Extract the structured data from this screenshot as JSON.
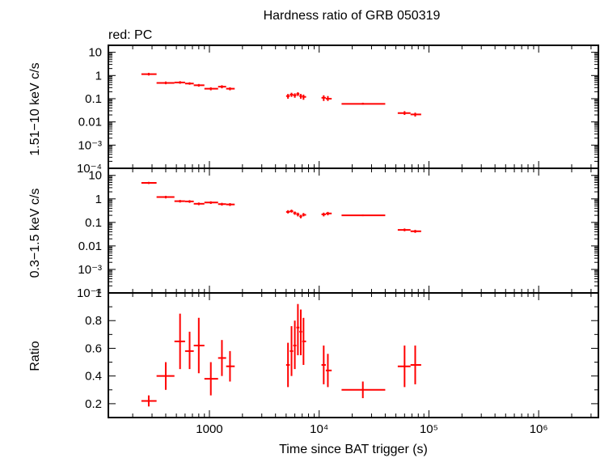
{
  "title": "Hardness ratio of GRB 050319",
  "subtitle": "red: PC",
  "xlabel": "Time since BAT trigger (s)",
  "colors": {
    "data": "#ff0000",
    "axes": "#000000",
    "background": "#ffffff"
  },
  "chart_data": [
    {
      "type": "scatter",
      "panel": "hard",
      "ylabel": "1.51−10 keV c/s",
      "xscale": "log",
      "yscale": "log",
      "xlim": [
        120,
        3500000
      ],
      "ylim": [
        0.0001,
        20
      ],
      "grid": false,
      "ytick_labels": [
        "10",
        "1",
        "0.1",
        "0.01",
        "10⁻³",
        "10⁻⁴"
      ],
      "points": [
        {
          "x": 280,
          "y": 1.15,
          "xerr": [
            240,
            330
          ],
          "yerr": [
            1.0,
            1.3
          ]
        },
        {
          "x": 400,
          "y": 0.48,
          "xerr": [
            330,
            480
          ],
          "yerr": [
            0.42,
            0.55
          ]
        },
        {
          "x": 540,
          "y": 0.5,
          "xerr": [
            480,
            600
          ],
          "yerr": [
            0.44,
            0.57
          ]
        },
        {
          "x": 660,
          "y": 0.45,
          "xerr": [
            600,
            720
          ],
          "yerr": [
            0.4,
            0.51
          ]
        },
        {
          "x": 800,
          "y": 0.38,
          "xerr": [
            720,
            900
          ],
          "yerr": [
            0.33,
            0.43
          ]
        },
        {
          "x": 1030,
          "y": 0.27,
          "xerr": [
            900,
            1200
          ],
          "yerr": [
            0.23,
            0.31
          ]
        },
        {
          "x": 1300,
          "y": 0.33,
          "xerr": [
            1200,
            1420
          ],
          "yerr": [
            0.28,
            0.38
          ]
        },
        {
          "x": 1540,
          "y": 0.27,
          "xerr": [
            1420,
            1700
          ],
          "yerr": [
            0.23,
            0.31
          ]
        },
        {
          "x": 5200,
          "y": 0.13,
          "xerr": [
            5000,
            5400
          ],
          "yerr": [
            0.1,
            0.16
          ]
        },
        {
          "x": 5600,
          "y": 0.15,
          "xerr": [
            5400,
            5800
          ],
          "yerr": [
            0.12,
            0.18
          ]
        },
        {
          "x": 6000,
          "y": 0.14,
          "xerr": [
            5800,
            6200
          ],
          "yerr": [
            0.11,
            0.17
          ]
        },
        {
          "x": 6400,
          "y": 0.16,
          "xerr": [
            6200,
            6600
          ],
          "yerr": [
            0.13,
            0.19
          ]
        },
        {
          "x": 6800,
          "y": 0.13,
          "xerr": [
            6600,
            7000
          ],
          "yerr": [
            0.1,
            0.16
          ]
        },
        {
          "x": 7200,
          "y": 0.12,
          "xerr": [
            7000,
            7600
          ],
          "yerr": [
            0.09,
            0.15
          ]
        },
        {
          "x": 11000,
          "y": 0.11,
          "xerr": [
            10500,
            11500
          ],
          "yerr": [
            0.08,
            0.14
          ]
        },
        {
          "x": 12000,
          "y": 0.1,
          "xerr": [
            11500,
            13000
          ],
          "yerr": [
            0.08,
            0.13
          ]
        },
        {
          "x": 25000,
          "y": 0.06,
          "xerr": [
            16000,
            40000
          ],
          "yerr": [
            0.055,
            0.067
          ]
        },
        {
          "x": 60000,
          "y": 0.024,
          "xerr": [
            52000,
            68000
          ],
          "yerr": [
            0.02,
            0.029
          ]
        },
        {
          "x": 75000,
          "y": 0.021,
          "xerr": [
            68000,
            85000
          ],
          "yerr": [
            0.017,
            0.025
          ]
        }
      ]
    },
    {
      "type": "scatter",
      "panel": "soft",
      "ylabel": "0.3−1.5 keV c/s",
      "xscale": "log",
      "yscale": "log",
      "xlim": [
        120,
        3500000
      ],
      "ylim": [
        0.0001,
        20
      ],
      "grid": false,
      "ytick_labels": [
        "10",
        "1",
        "0.1",
        "0.01",
        "10⁻³",
        "10⁻⁴"
      ],
      "points": [
        {
          "x": 280,
          "y": 4.8,
          "xerr": [
            240,
            330
          ],
          "yerr": [
            4.3,
            5.3
          ]
        },
        {
          "x": 400,
          "y": 1.2,
          "xerr": [
            330,
            480
          ],
          "yerr": [
            1.05,
            1.35
          ]
        },
        {
          "x": 540,
          "y": 0.8,
          "xerr": [
            480,
            600
          ],
          "yerr": [
            0.7,
            0.9
          ]
        },
        {
          "x": 660,
          "y": 0.78,
          "xerr": [
            600,
            720
          ],
          "yerr": [
            0.68,
            0.88
          ]
        },
        {
          "x": 800,
          "y": 0.62,
          "xerr": [
            720,
            900
          ],
          "yerr": [
            0.54,
            0.7
          ]
        },
        {
          "x": 1030,
          "y": 0.7,
          "xerr": [
            900,
            1200
          ],
          "yerr": [
            0.61,
            0.79
          ]
        },
        {
          "x": 1300,
          "y": 0.6,
          "xerr": [
            1200,
            1420
          ],
          "yerr": [
            0.52,
            0.68
          ]
        },
        {
          "x": 1540,
          "y": 0.58,
          "xerr": [
            1420,
            1700
          ],
          "yerr": [
            0.5,
            0.66
          ]
        },
        {
          "x": 5200,
          "y": 0.28,
          "xerr": [
            5000,
            5400
          ],
          "yerr": [
            0.24,
            0.33
          ]
        },
        {
          "x": 5600,
          "y": 0.3,
          "xerr": [
            5400,
            5800
          ],
          "yerr": [
            0.26,
            0.35
          ]
        },
        {
          "x": 6000,
          "y": 0.25,
          "xerr": [
            5800,
            6200
          ],
          "yerr": [
            0.21,
            0.29
          ]
        },
        {
          "x": 6400,
          "y": 0.22,
          "xerr": [
            6200,
            6600
          ],
          "yerr": [
            0.18,
            0.26
          ]
        },
        {
          "x": 6800,
          "y": 0.18,
          "xerr": [
            6600,
            7000
          ],
          "yerr": [
            0.15,
            0.21
          ]
        },
        {
          "x": 7200,
          "y": 0.21,
          "xerr": [
            7000,
            7600
          ],
          "yerr": [
            0.18,
            0.25
          ]
        },
        {
          "x": 11000,
          "y": 0.22,
          "xerr": [
            10500,
            11500
          ],
          "yerr": [
            0.18,
            0.26
          ]
        },
        {
          "x": 12000,
          "y": 0.24,
          "xerr": [
            11500,
            13000
          ],
          "yerr": [
            0.2,
            0.28
          ]
        },
        {
          "x": 25000,
          "y": 0.2,
          "xerr": [
            16000,
            40000
          ],
          "yerr": [
            0.185,
            0.215
          ]
        },
        {
          "x": 60000,
          "y": 0.048,
          "xerr": [
            52000,
            68000
          ],
          "yerr": [
            0.042,
            0.055
          ]
        },
        {
          "x": 75000,
          "y": 0.042,
          "xerr": [
            68000,
            85000
          ],
          "yerr": [
            0.036,
            0.048
          ]
        }
      ]
    },
    {
      "type": "scatter",
      "panel": "ratio",
      "ylabel": "Ratio",
      "xscale": "log",
      "yscale": "linear",
      "xlim": [
        120,
        3500000
      ],
      "ylim": [
        0.1,
        1.0
      ],
      "grid": false,
      "yticks": [
        0.2,
        0.4,
        0.6,
        0.8,
        1
      ],
      "ytick_labels": [
        "0.2",
        "0.4",
        "0.6",
        "0.8",
        "1"
      ],
      "xticks": [
        1000,
        10000,
        100000,
        1000000
      ],
      "xtick_labels": [
        "1000",
        "10⁴",
        "10⁵",
        "10⁶"
      ],
      "points": [
        {
          "x": 280,
          "y": 0.22,
          "xerr": [
            240,
            330
          ],
          "yerr": [
            0.18,
            0.26
          ]
        },
        {
          "x": 400,
          "y": 0.4,
          "xerr": [
            330,
            480
          ],
          "yerr": [
            0.3,
            0.5
          ]
        },
        {
          "x": 540,
          "y": 0.65,
          "xerr": [
            480,
            600
          ],
          "yerr": [
            0.45,
            0.85
          ]
        },
        {
          "x": 660,
          "y": 0.58,
          "xerr": [
            600,
            720
          ],
          "yerr": [
            0.45,
            0.72
          ]
        },
        {
          "x": 800,
          "y": 0.62,
          "xerr": [
            720,
            900
          ],
          "yerr": [
            0.42,
            0.82
          ]
        },
        {
          "x": 1030,
          "y": 0.38,
          "xerr": [
            900,
            1200
          ],
          "yerr": [
            0.26,
            0.5
          ]
        },
        {
          "x": 1300,
          "y": 0.53,
          "xerr": [
            1200,
            1420
          ],
          "yerr": [
            0.4,
            0.66
          ]
        },
        {
          "x": 1540,
          "y": 0.47,
          "xerr": [
            1420,
            1700
          ],
          "yerr": [
            0.36,
            0.58
          ]
        },
        {
          "x": 5200,
          "y": 0.48,
          "xerr": [
            5000,
            5400
          ],
          "yerr": [
            0.32,
            0.64
          ]
        },
        {
          "x": 5600,
          "y": 0.58,
          "xerr": [
            5400,
            5800
          ],
          "yerr": [
            0.4,
            0.76
          ]
        },
        {
          "x": 6000,
          "y": 0.62,
          "xerr": [
            5800,
            6200
          ],
          "yerr": [
            0.45,
            0.8
          ]
        },
        {
          "x": 6400,
          "y": 0.75,
          "xerr": [
            6200,
            6600
          ],
          "yerr": [
            0.55,
            0.92
          ]
        },
        {
          "x": 6800,
          "y": 0.72,
          "xerr": [
            6600,
            7000
          ],
          "yerr": [
            0.55,
            0.88
          ]
        },
        {
          "x": 7200,
          "y": 0.65,
          "xerr": [
            7000,
            7600
          ],
          "yerr": [
            0.48,
            0.82
          ]
        },
        {
          "x": 11000,
          "y": 0.48,
          "xerr": [
            10500,
            11500
          ],
          "yerr": [
            0.34,
            0.62
          ]
        },
        {
          "x": 12000,
          "y": 0.44,
          "xerr": [
            11500,
            13000
          ],
          "yerr": [
            0.32,
            0.56
          ]
        },
        {
          "x": 25000,
          "y": 0.3,
          "xerr": [
            16000,
            40000
          ],
          "yerr": [
            0.24,
            0.36
          ]
        },
        {
          "x": 60000,
          "y": 0.47,
          "xerr": [
            52000,
            68000
          ],
          "yerr": [
            0.32,
            0.62
          ]
        },
        {
          "x": 75000,
          "y": 0.48,
          "xerr": [
            68000,
            85000
          ],
          "yerr": [
            0.34,
            0.62
          ]
        }
      ]
    }
  ]
}
